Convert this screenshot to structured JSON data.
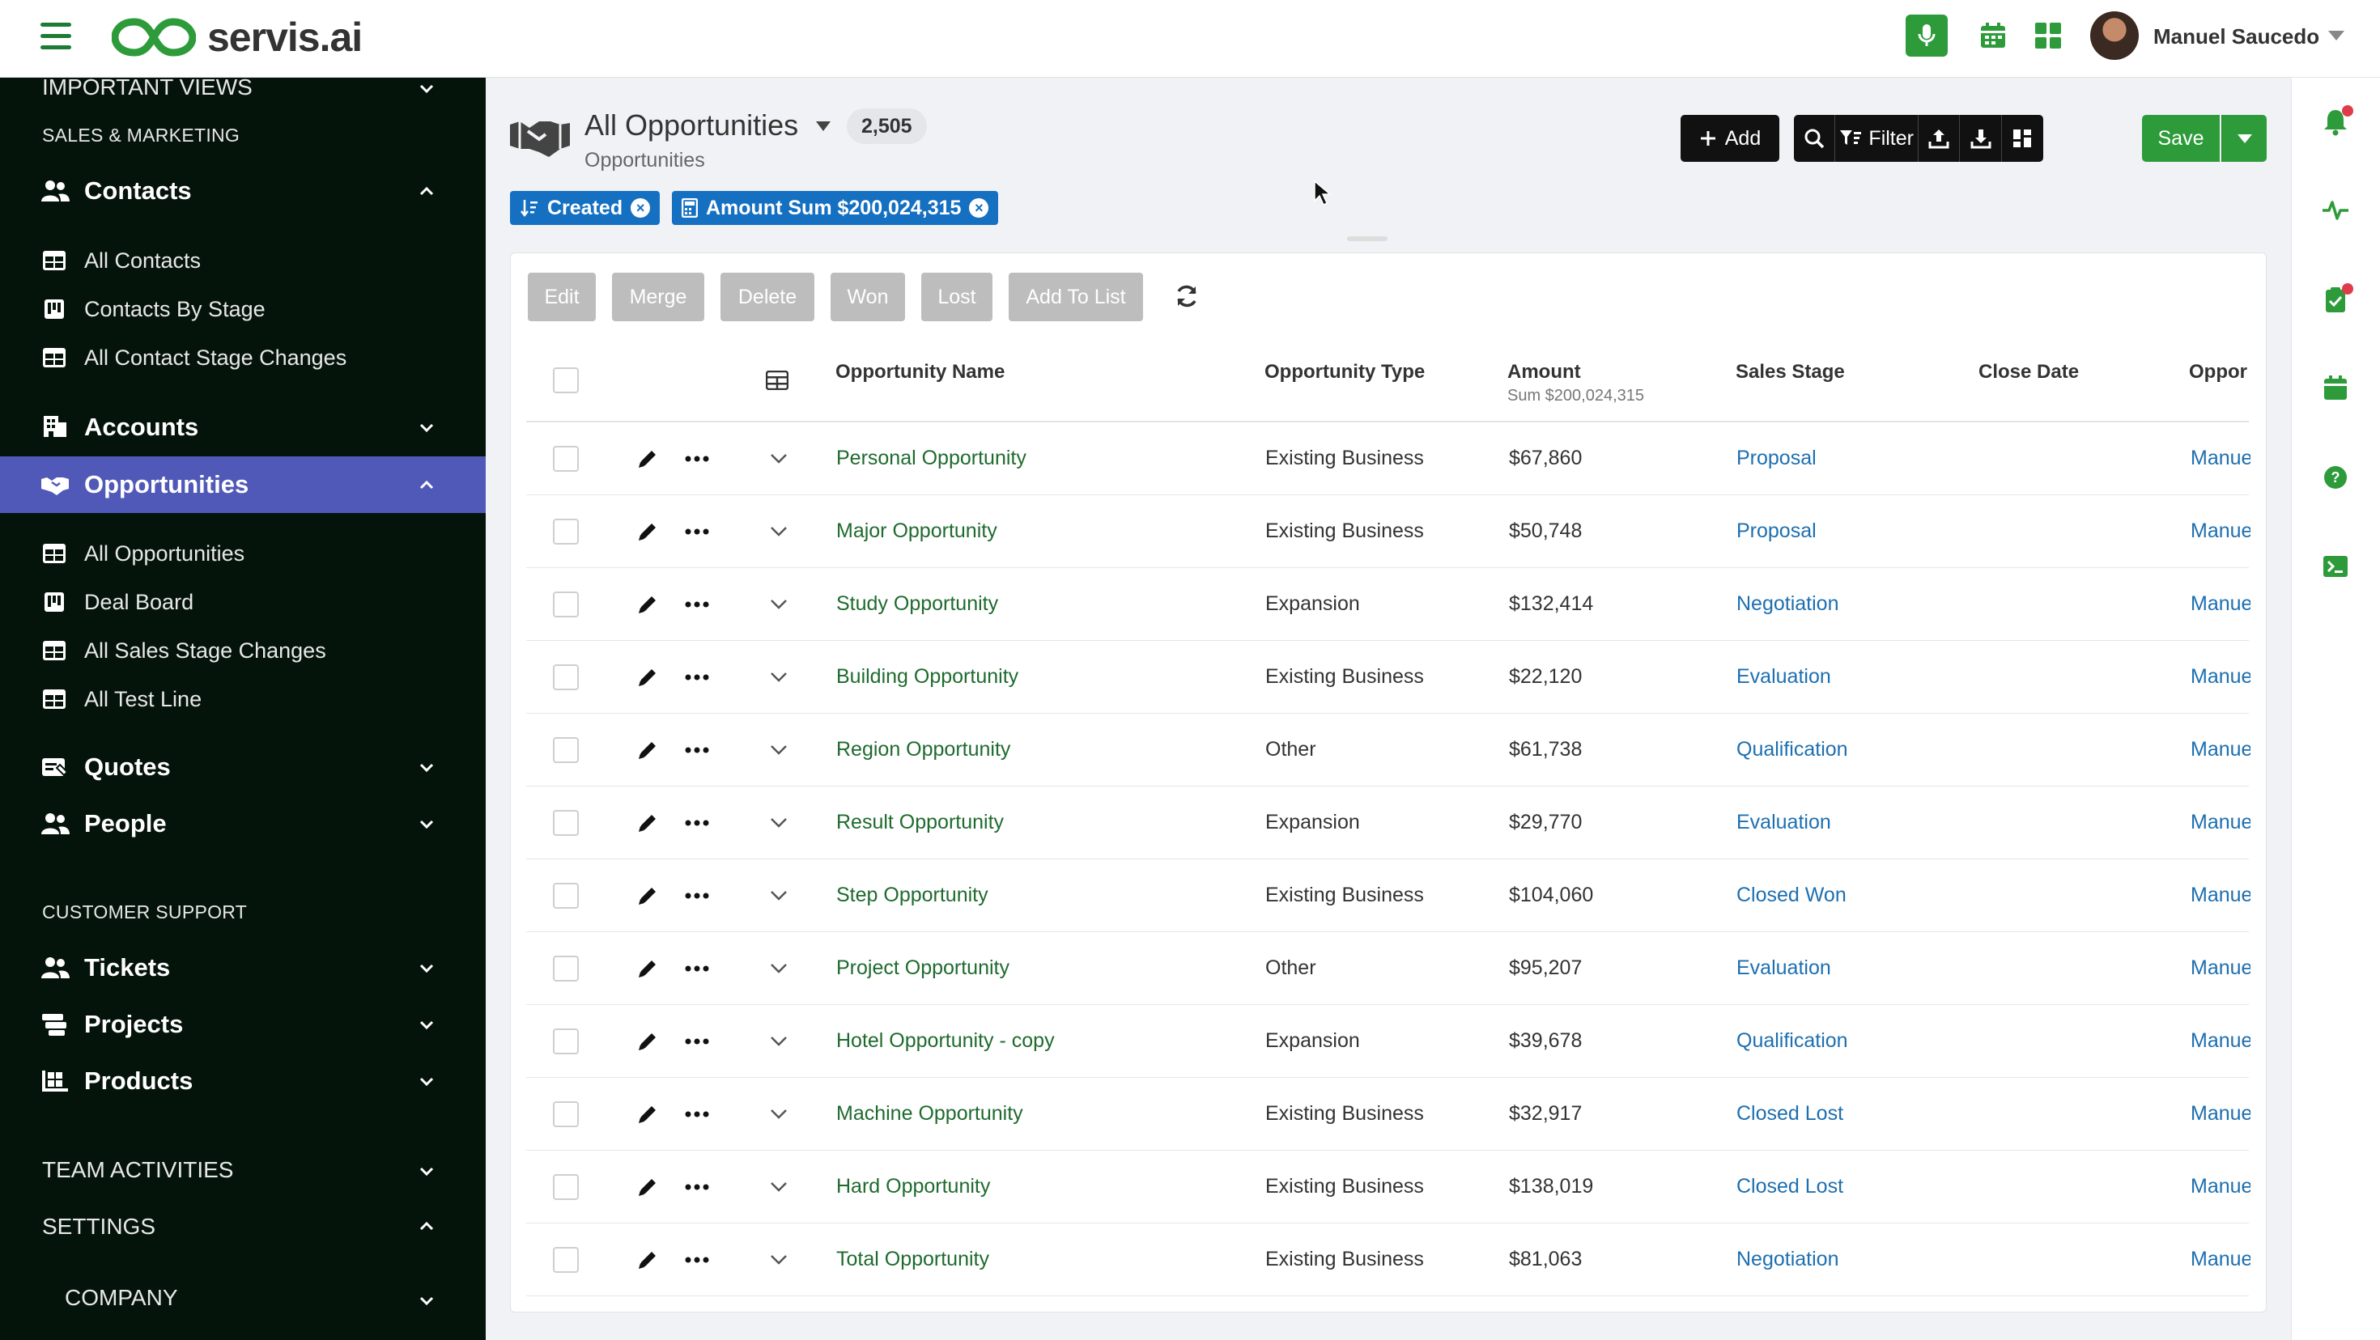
{
  "brand": {
    "name": "servis.ai"
  },
  "user": {
    "name": "Manuel Saucedo"
  },
  "sidebar": {
    "top_partial": "IMPORTANT VIEWS",
    "section_sales": "SALES & MARKETING",
    "contacts": {
      "label": "Contacts",
      "subs": [
        "All Contacts",
        "Contacts By Stage",
        "All Contact Stage Changes"
      ]
    },
    "accounts": {
      "label": "Accounts"
    },
    "opportunities": {
      "label": "Opportunities",
      "subs": [
        "All Opportunities",
        "Deal Board",
        "All Sales Stage Changes",
        "All Test Line"
      ]
    },
    "quotes": {
      "label": "Quotes"
    },
    "people": {
      "label": "People"
    },
    "section_support": "CUSTOMER SUPPORT",
    "tickets": {
      "label": "Tickets"
    },
    "projects": {
      "label": "Projects"
    },
    "products": {
      "label": "Products"
    },
    "team_activities": "TEAM ACTIVITIES",
    "settings": "SETTINGS",
    "company": "COMPANY"
  },
  "header": {
    "title": "All Opportunities",
    "count": "2,505",
    "subtitle": "Opportunities",
    "add_label": "Add",
    "filter_label": "Filter",
    "save_label": "Save"
  },
  "chips": {
    "created": "Created",
    "amount": "Amount Sum $200,024,315"
  },
  "actions": [
    "Edit",
    "Merge",
    "Delete",
    "Won",
    "Lost",
    "Add To List"
  ],
  "table": {
    "columns": {
      "name": "Opportunity Name",
      "type": "Opportunity Type",
      "amount": "Amount",
      "amount_sum": "Sum $200,024,315",
      "stage": "Sales Stage",
      "close": "Close Date",
      "owner": "Oppor"
    },
    "rows": [
      {
        "name": "Personal Opportunity",
        "type": "Existing Business",
        "amount": "$67,860",
        "stage": "Proposal",
        "owner": "Manue"
      },
      {
        "name": "Major Opportunity",
        "type": "Existing Business",
        "amount": "$50,748",
        "stage": "Proposal",
        "owner": "Manue"
      },
      {
        "name": "Study Opportunity",
        "type": "Expansion",
        "amount": "$132,414",
        "stage": "Negotiation",
        "owner": "Manue"
      },
      {
        "name": "Building Opportunity",
        "type": "Existing Business",
        "amount": "$22,120",
        "stage": "Evaluation",
        "owner": "Manue"
      },
      {
        "name": "Region Opportunity",
        "type": "Other",
        "amount": "$61,738",
        "stage": "Qualification",
        "owner": "Manue"
      },
      {
        "name": "Result Opportunity",
        "type": "Expansion",
        "amount": "$29,770",
        "stage": "Evaluation",
        "owner": "Manue"
      },
      {
        "name": "Step Opportunity",
        "type": "Existing Business",
        "amount": "$104,060",
        "stage": "Closed Won",
        "owner": "Manue"
      },
      {
        "name": "Project Opportunity",
        "type": "Other",
        "amount": "$95,207",
        "stage": "Evaluation",
        "owner": "Manue"
      },
      {
        "name": "Hotel Opportunity - copy",
        "type": "Expansion",
        "amount": "$39,678",
        "stage": "Qualification",
        "owner": "Manue"
      },
      {
        "name": "Machine Opportunity",
        "type": "Existing Business",
        "amount": "$32,917",
        "stage": "Closed Lost",
        "owner": "Manue"
      },
      {
        "name": "Hard Opportunity",
        "type": "Existing Business",
        "amount": "$138,019",
        "stage": "Closed Lost",
        "owner": "Manue"
      },
      {
        "name": "Total Opportunity",
        "type": "Existing Business",
        "amount": "$81,063",
        "stage": "Negotiation",
        "owner": "Manue"
      }
    ]
  },
  "colors": {
    "brand_green": "#2d9b3a",
    "active_nav": "#5159b8",
    "chip_blue": "#1570c2",
    "sidebar_bg": "#05140a"
  }
}
